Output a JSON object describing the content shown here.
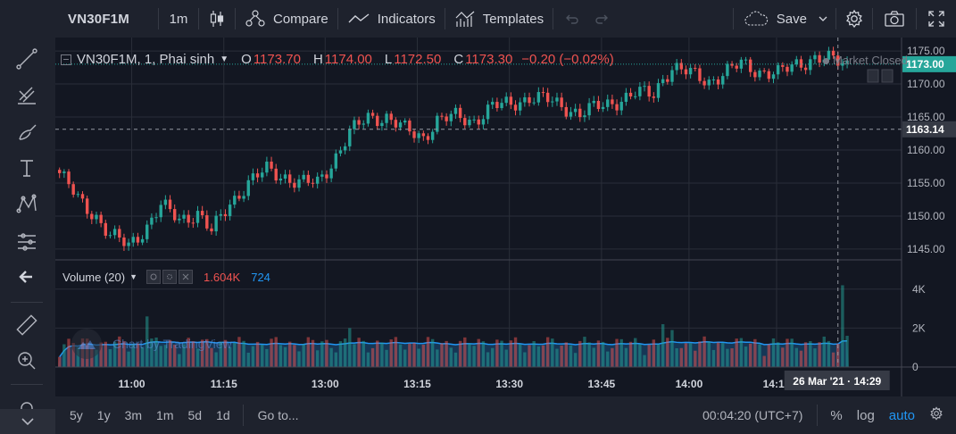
{
  "toolbar": {
    "symbol": "VN30F1M",
    "interval": "1m",
    "compare_label": "Compare",
    "indicators_label": "Indicators",
    "templates_label": "Templates",
    "save_label": "Save",
    "icons": [
      "candles-icon",
      "compare-icon",
      "indicators-icon",
      "templates-icon",
      "undo-icon",
      "redo-icon",
      "cloud-icon",
      "chevron-down-icon",
      "gear-icon",
      "camera-icon",
      "fullscreen-icon"
    ]
  },
  "left_toolbar": {
    "icons": [
      "crosshair-icon",
      "trend-line-icon",
      "fib-retracement-icon",
      "brush-icon",
      "text-icon",
      "pattern-icon",
      "prediction-icon",
      "back-arrow-icon",
      "ruler-icon",
      "zoom-in-icon",
      "magnet-icon",
      "chevron-down-icon"
    ]
  },
  "legend": {
    "symbol_line": "VN30F1M, 1, Phai sinh",
    "open_label": "O",
    "open": "1173.70",
    "high_label": "H",
    "high": "1174.00",
    "low_label": "L",
    "low": "1172.50",
    "close_label": "C",
    "close": "1173.30",
    "change": "−0.20 (−0.02%)"
  },
  "market_status": "Market Closed",
  "volume_legend": {
    "name": "Volume (20)",
    "value1": "1.604K",
    "value2": "724"
  },
  "watermark": "Chart by TradingView",
  "price_axis": {
    "ticks": [
      "1175.00",
      "1170.00",
      "1165.00",
      "1160.00",
      "1155.00",
      "1150.00",
      "1145.00"
    ],
    "last_price": "1173.00",
    "crosshair_price": "1163.14"
  },
  "volume_axis": {
    "ticks": [
      "4K",
      "2K",
      "0"
    ]
  },
  "time_axis": {
    "ticks": [
      "11:00",
      "11:15",
      "13:00",
      "13:15",
      "13:30",
      "13:45",
      "14:00",
      "14:15"
    ],
    "crosshair_label": "26 Mar '21 · 14:29"
  },
  "bottom_bar": {
    "ranges": [
      "5y",
      "1y",
      "3m",
      "1m",
      "5d",
      "1d"
    ],
    "goto_label": "Go to...",
    "clock": "00:04:20 (UTC+7)",
    "percent_label": "%",
    "log_label": "log",
    "auto_label": "auto"
  },
  "colors": {
    "up": "#26a69a",
    "down": "#ef5350",
    "background": "#131722",
    "accent": "#2196f3"
  },
  "chart_data": {
    "type": "candlestick",
    "symbol": "VN30F1M",
    "interval": "1m",
    "ylim": [
      1143.5,
      1176.5
    ],
    "volume_ylim": [
      0,
      5000
    ],
    "sessions": [
      {
        "start": "10:48",
        "end": "11:30"
      },
      {
        "start": "13:00",
        "end": "14:29"
      }
    ],
    "anchors": [
      [
        0,
        1156.5
      ],
      [
        4,
        1152.5
      ],
      [
        8,
        1150.0
      ],
      [
        11,
        1147.0
      ],
      [
        15,
        1145.5
      ],
      [
        19,
        1148.5
      ],
      [
        22,
        1151.5
      ],
      [
        26,
        1149.5
      ],
      [
        30,
        1150.5
      ],
      [
        33,
        1147.5
      ],
      [
        37,
        1152.0
      ],
      [
        41,
        1155.0
      ],
      [
        45,
        1157.0
      ],
      [
        49,
        1156.0
      ],
      [
        52,
        1155.0
      ],
      [
        56,
        1155.0
      ],
      [
        59,
        1158.0
      ],
      [
        63,
        1162.5
      ],
      [
        67,
        1165.0
      ],
      [
        71,
        1165.0
      ],
      [
        75,
        1163.0
      ],
      [
        79,
        1162.0
      ],
      [
        82,
        1164.5
      ],
      [
        86,
        1165.0
      ],
      [
        90,
        1164.5
      ],
      [
        94,
        1166.5
      ],
      [
        98,
        1167.0
      ],
      [
        102,
        1168.0
      ],
      [
        106,
        1167.5
      ],
      [
        110,
        1166.5
      ],
      [
        113,
        1165.5
      ],
      [
        117,
        1166.5
      ],
      [
        121,
        1167.5
      ],
      [
        125,
        1168.5
      ],
      [
        129,
        1168.5
      ],
      [
        131,
        1171.0
      ],
      [
        133,
        1172.5
      ],
      [
        137,
        1171.5
      ],
      [
        141,
        1170.5
      ],
      [
        144,
        1171.5
      ],
      [
        148,
        1173.0
      ],
      [
        152,
        1172.0
      ],
      [
        156,
        1171.5
      ],
      [
        160,
        1173.0
      ],
      [
        164,
        1174.0
      ],
      [
        168,
        1173.5
      ],
      [
        171,
        1173.0
      ]
    ],
    "last_volumes": [
      1200,
      4200,
      1604
    ]
  }
}
